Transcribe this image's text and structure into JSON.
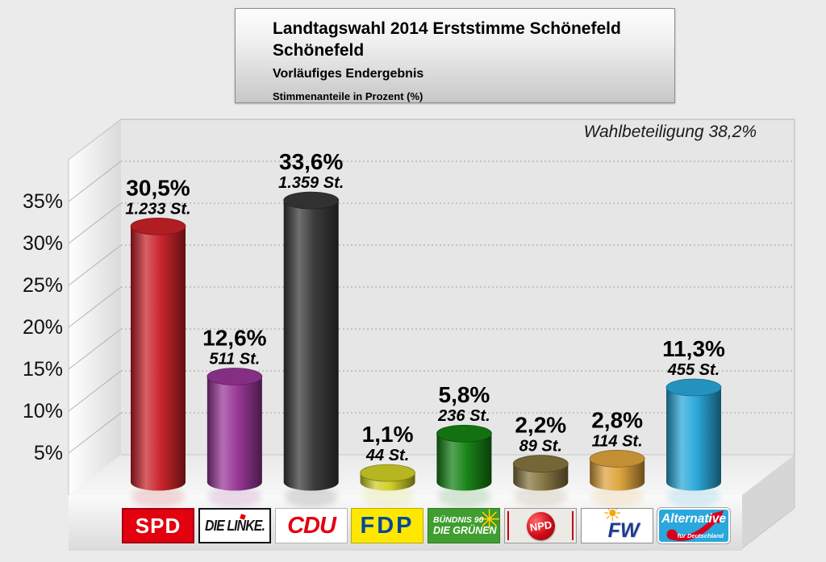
{
  "page": {
    "background": "#ebebeb"
  },
  "title_box": {
    "title_line1": "Landtagswahl 2014 Erststimme Schönefeld",
    "title_line2": "Schönefeld",
    "subtitle": "Vorläufiges Endergebnis",
    "note": "Stimmenanteile in Prozent (%)"
  },
  "turnout": {
    "label": "Wahlbeteiligung 38,2%",
    "value_pct": 38.2
  },
  "chart_data": {
    "type": "bar",
    "variant": "3d-cylinder",
    "title": "Landtagswahl 2014 Erststimme Schönefeld Schönefeld",
    "subtitle": "Vorläufiges Endergebnis",
    "ylabel": "Stimmenanteile in Prozent (%)",
    "ylim": [
      0,
      40
    ],
    "yticks": [
      5,
      10,
      15,
      20,
      25,
      30,
      35
    ],
    "ytick_suffix": "%",
    "grid": "dotted",
    "legend_position": "bottom",
    "categories": [
      "SPD",
      "DIE LINKE",
      "CDU",
      "FDP",
      "BÜNDNIS 90/DIE GRÜNEN",
      "NPD",
      "FW",
      "AfD"
    ],
    "series": [
      {
        "name": "Erststimme Stimmenanteil (%)",
        "values": [
          30.5,
          12.6,
          33.6,
          1.1,
          5.8,
          2.2,
          2.8,
          11.3
        ],
        "votes": [
          1233,
          511,
          1359,
          44,
          236,
          89,
          114,
          455
        ]
      }
    ],
    "value_labels_pct": [
      "30,5%",
      "12,6%",
      "33,6%",
      "1,1%",
      "5,8%",
      "2,2%",
      "2,8%",
      "11,3%"
    ],
    "value_labels_votes": [
      "1.233 St.",
      "511 St.",
      "1.359 St.",
      "44 St.",
      "236 St.",
      "89 St.",
      "114 St.",
      "455 St."
    ],
    "bar_colors": [
      "#c82128",
      "#973596",
      "#383838",
      "#cfcf26",
      "#148114",
      "#857440",
      "#dda33c",
      "#28a7d8"
    ]
  },
  "logos": {
    "spd": {
      "label": "SPD",
      "bg": "#e3000f",
      "fg": "#ffffff"
    },
    "linke": {
      "label": "DIE LINKE.",
      "bg": "#ffffff",
      "fg": "#141414",
      "accent": "#e3000f"
    },
    "cdu": {
      "label": "CDU",
      "bg": "#ffffff",
      "fg": "#e3000f"
    },
    "fdp": {
      "label": "FDP",
      "bg": "#ffe800",
      "fg": "#00479b"
    },
    "gruene": {
      "label_line1": "BÜNDNIS 90",
      "label_line2": "DIE GRÜNEN",
      "bg": "#3f9e2f",
      "fg": "#ffffff",
      "accent": "#ffd500"
    },
    "npd": {
      "label": "NPD",
      "bg": "#eceae5",
      "fg": "#ffffff",
      "accent": "#c40016"
    },
    "fw": {
      "label": "FW",
      "bg": "#ffffff",
      "fg": "#1d3a8c",
      "accent": "#f7a600"
    },
    "afd": {
      "label": "Alternative",
      "sublabel": "für Deutschland",
      "bg": "#2aa7dc",
      "fg": "#ffffff",
      "accent": "#d8001c"
    }
  }
}
